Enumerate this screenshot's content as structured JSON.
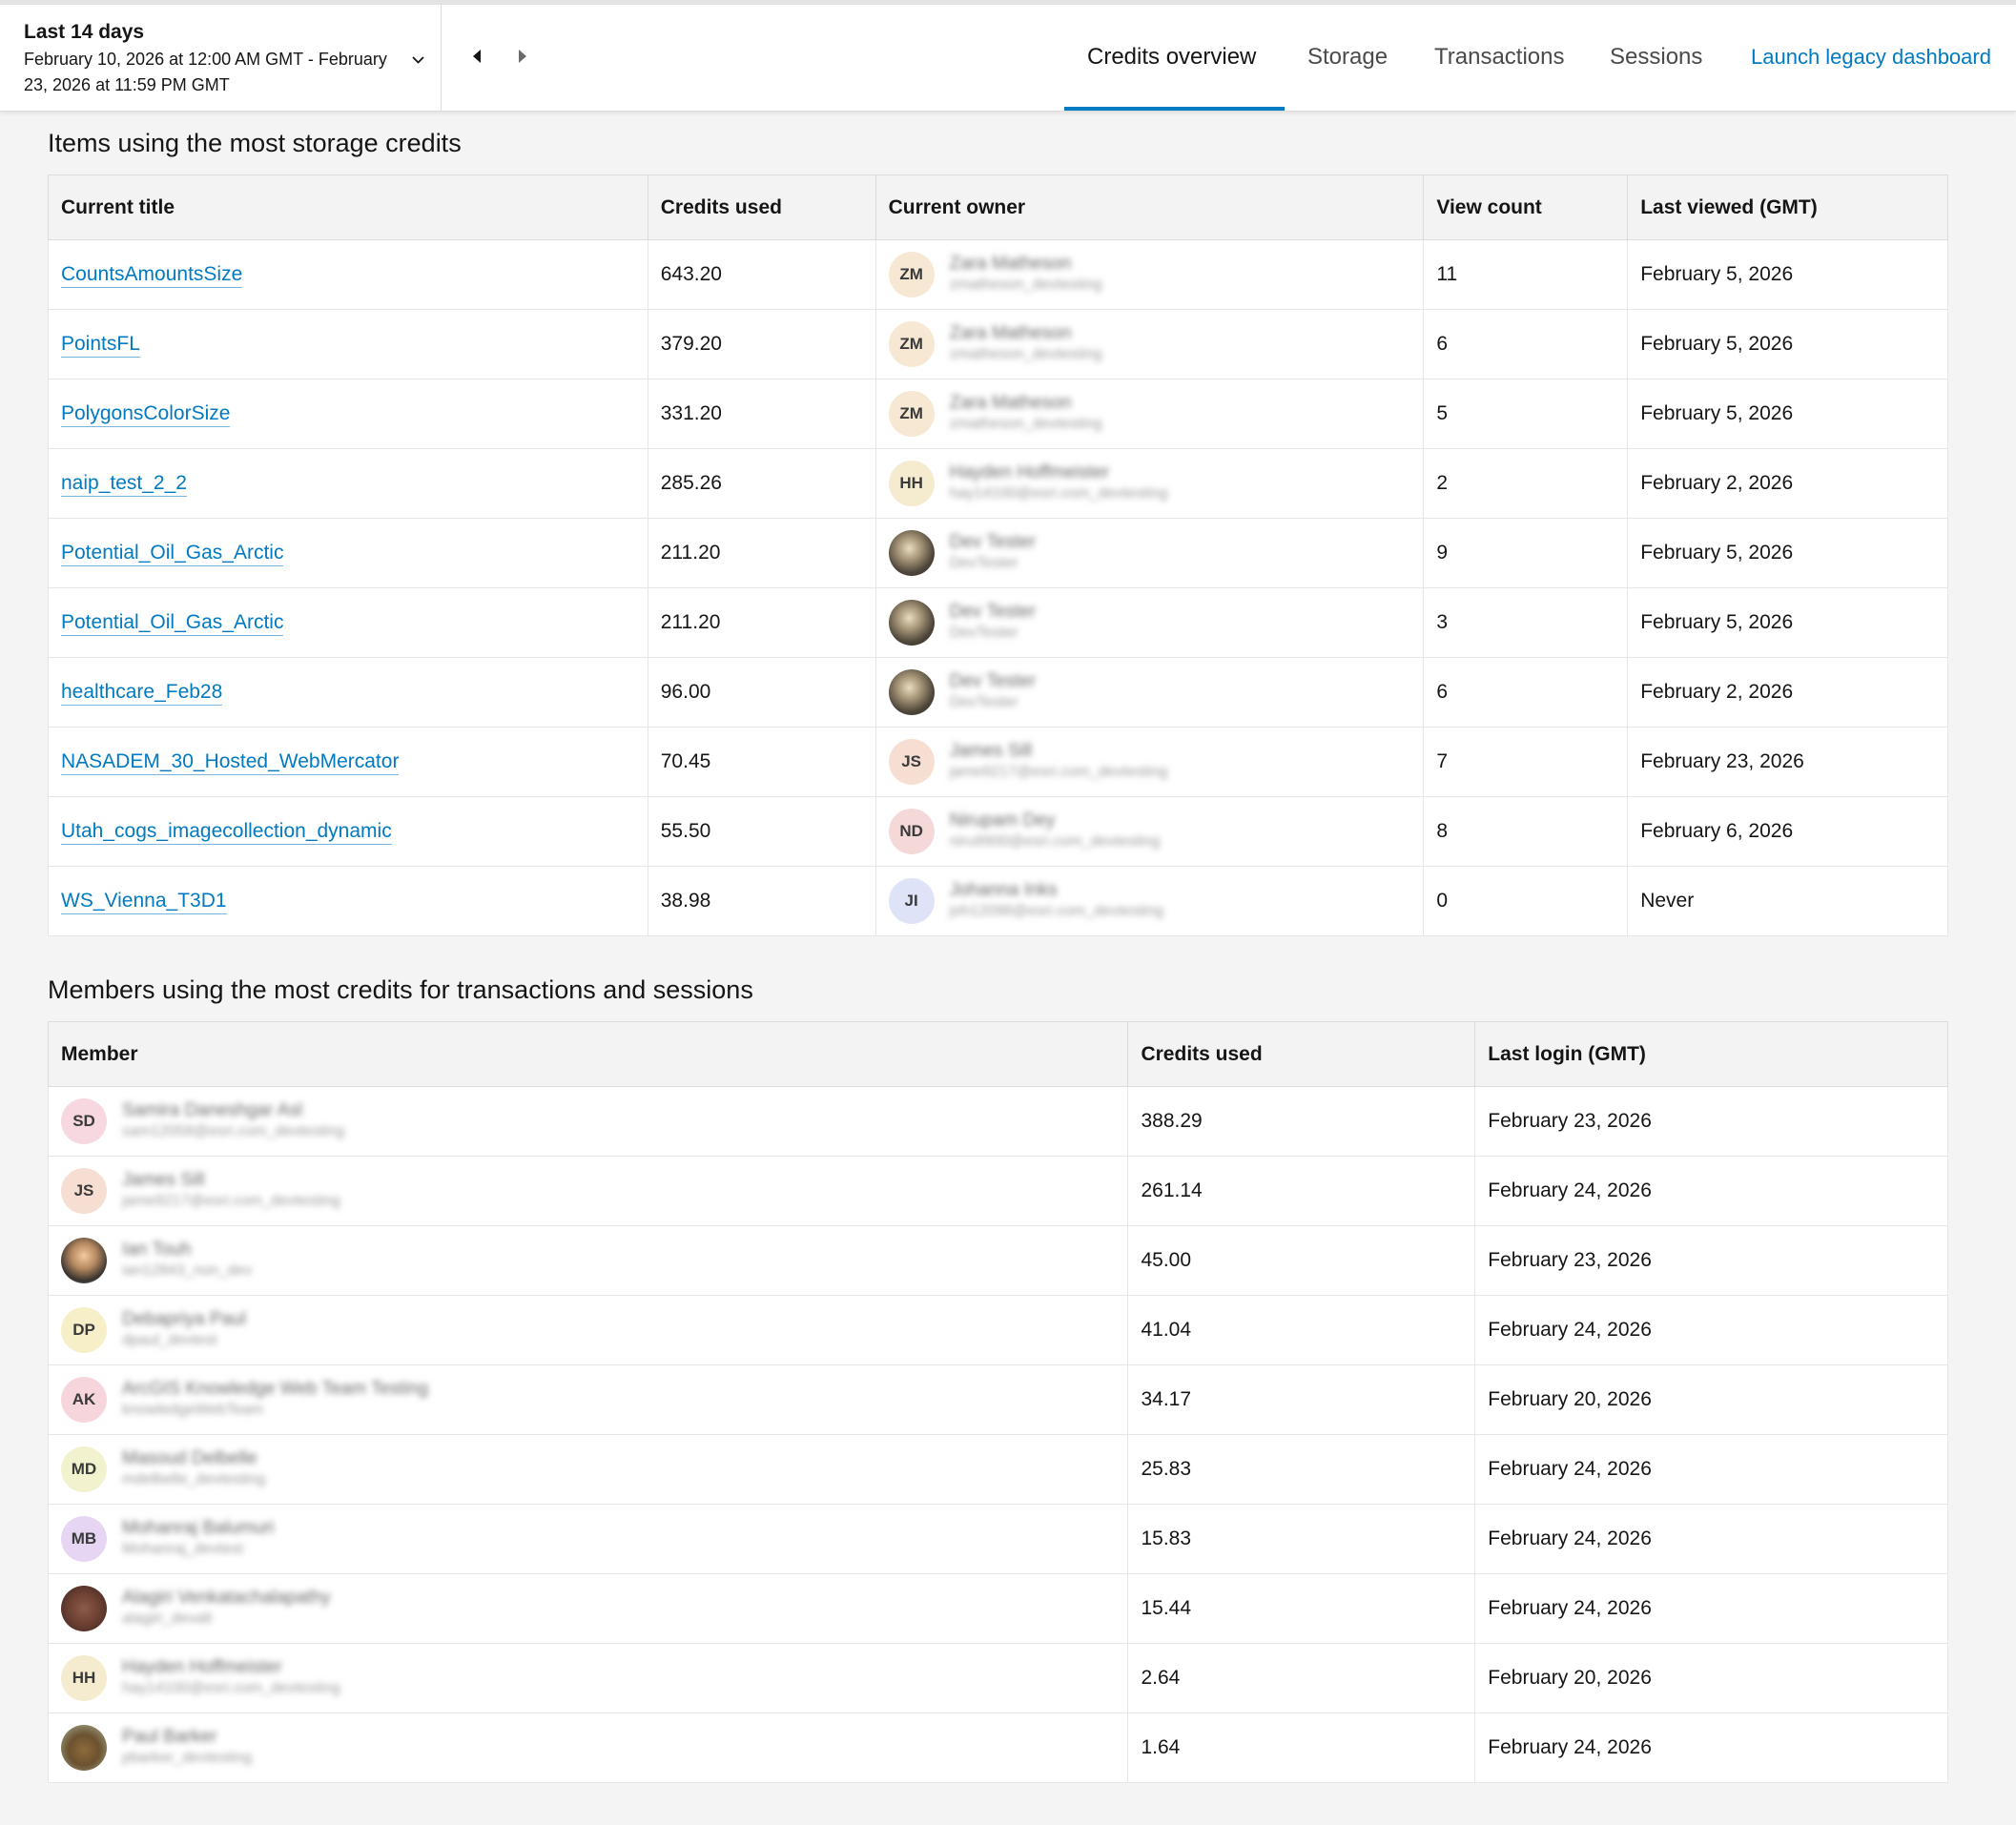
{
  "header": {
    "date_title": "Last 14 days",
    "date_range": "February 10, 2026 at 12:00 AM GMT - February 23, 2026 at 11:59 PM GMT",
    "tabs": [
      {
        "label": "Credits overview",
        "active": true
      },
      {
        "label": "Storage",
        "active": false
      },
      {
        "label": "Transactions",
        "active": false
      },
      {
        "label": "Sessions",
        "active": false
      }
    ],
    "legacy_link": "Launch legacy dashboard",
    "accent_color": "#007ac2"
  },
  "storage_section": {
    "title": "Items using the most storage credits",
    "columns": [
      "Current title",
      "Credits used",
      "Current owner",
      "View count",
      "Last viewed (GMT)"
    ],
    "rows": [
      {
        "title": "CountsAmountsSize",
        "credits": "643.20",
        "owner_initials": "ZM",
        "owner_name": "Zara Matheson",
        "owner_user": "zmatheson_devtesting",
        "views": "11",
        "last_viewed": "February 5, 2026"
      },
      {
        "title": "PointsFL",
        "credits": "379.20",
        "owner_initials": "ZM",
        "owner_name": "Zara Matheson",
        "owner_user": "zmatheson_devtesting",
        "views": "6",
        "last_viewed": "February 5, 2026"
      },
      {
        "title": "PolygonsColorSize",
        "credits": "331.20",
        "owner_initials": "ZM",
        "owner_name": "Zara Matheson",
        "owner_user": "zmatheson_devtesting",
        "views": "5",
        "last_viewed": "February 5, 2026"
      },
      {
        "title": "naip_test_2_2",
        "credits": "285.26",
        "owner_initials": "HH",
        "owner_name": "Hayden Hoffmeister",
        "owner_user": "hay14100@esri.com_devtesting",
        "views": "2",
        "last_viewed": "February 2, 2026"
      },
      {
        "title": "Potential_Oil_Gas_Arctic",
        "credits": "211.20",
        "owner_initials": "",
        "owner_name": "Dev Tester",
        "owner_user": "DevTester",
        "views": "9",
        "last_viewed": "February 5, 2026"
      },
      {
        "title": "Potential_Oil_Gas_Arctic",
        "credits": "211.20",
        "owner_initials": "",
        "owner_name": "Dev Tester",
        "owner_user": "DevTester",
        "views": "3",
        "last_viewed": "February 5, 2026"
      },
      {
        "title": "healthcare_Feb28",
        "credits": "96.00",
        "owner_initials": "",
        "owner_name": "Dev Tester",
        "owner_user": "DevTester",
        "views": "6",
        "last_viewed": "February 2, 2026"
      },
      {
        "title": "NASADEM_30_Hosted_WebMercator",
        "credits": "70.45",
        "owner_initials": "JS",
        "owner_name": "James Sill",
        "owner_user": "jame9217@esri.com_devtesting",
        "views": "7",
        "last_viewed": "February 23, 2026"
      },
      {
        "title": "Utah_cogs_imagecollection_dynamic",
        "credits": "55.50",
        "owner_initials": "ND",
        "owner_name": "Nirupam Dey",
        "owner_user": "niru9900@esri.com_devtesting",
        "views": "8",
        "last_viewed": "February 6, 2026"
      },
      {
        "title": "WS_Vienna_T3D1",
        "credits": "38.98",
        "owner_initials": "JI",
        "owner_name": "Johanna Inks",
        "owner_user": "joh12098@esri.com_devtesting",
        "views": "0",
        "last_viewed": "Never"
      }
    ]
  },
  "members_section": {
    "title": "Members using the most credits for transactions and sessions",
    "columns": [
      "Member",
      "Credits used",
      "Last login (GMT)"
    ],
    "rows": [
      {
        "initials": "SD",
        "name": "Samira Daneshgar Asl",
        "user": "sam12058@esri.com_devtesting",
        "credits": "388.29",
        "last_login": "February 23, 2026"
      },
      {
        "initials": "JS",
        "name": "James Sill",
        "user": "jame9217@esri.com_devtesting",
        "credits": "261.14",
        "last_login": "February 24, 2026"
      },
      {
        "initials": "",
        "name": "Ian Touh",
        "user": "ian12843_non_dev",
        "credits": "45.00",
        "last_login": "February 23, 2026"
      },
      {
        "initials": "DP",
        "name": "Debapriya Paul",
        "user": "dpaul_devtest",
        "credits": "41.04",
        "last_login": "February 24, 2026"
      },
      {
        "initials": "AK",
        "name": "ArcGIS Knowledge Web Team Testing",
        "user": "knowledgeWebTeam",
        "credits": "34.17",
        "last_login": "February 20, 2026"
      },
      {
        "initials": "MD",
        "name": "Masoud Delbelle",
        "user": "mdelbelle_devtesting",
        "credits": "25.83",
        "last_login": "February 24, 2026"
      },
      {
        "initials": "MB",
        "name": "Mohanraj Balumuri",
        "user": "Mohanraj_devtest",
        "credits": "15.83",
        "last_login": "February 24, 2026"
      },
      {
        "initials": "",
        "name": "Alagiri Venkatachalapathy",
        "user": "alagiri_devalt",
        "credits": "15.44",
        "last_login": "February 24, 2026"
      },
      {
        "initials": "HH",
        "name": "Hayden Hoffmeister",
        "user": "hay14100@esri.com_devtesting",
        "credits": "2.64",
        "last_login": "February 20, 2026"
      },
      {
        "initials": "",
        "name": "Paul Barker",
        "user": "pbarker_devtesting",
        "credits": "1.64",
        "last_login": "February 24, 2026"
      }
    ]
  }
}
